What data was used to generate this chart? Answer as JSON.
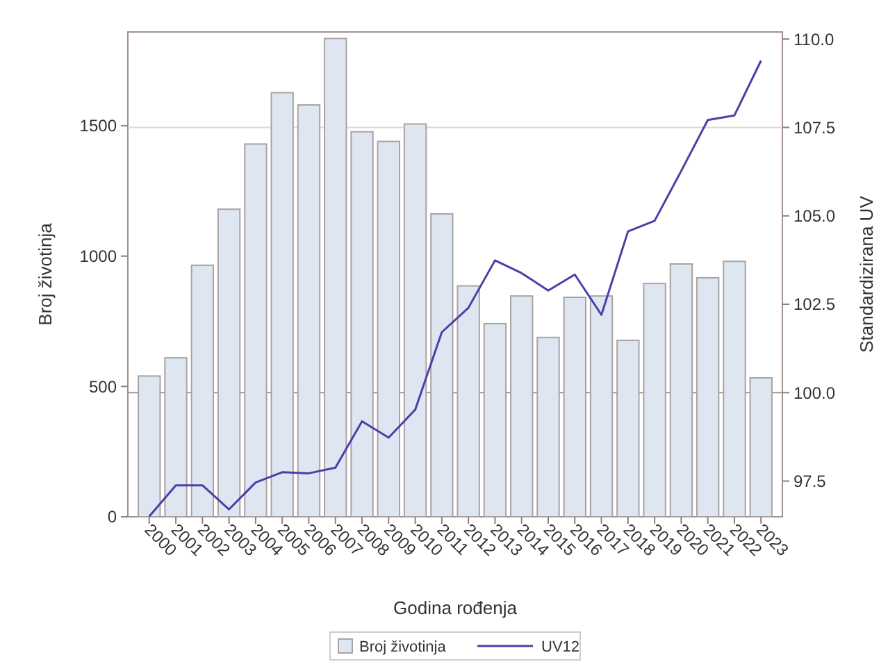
{
  "chart_data": {
    "type": "bar",
    "xlabel": "Godina rođenja",
    "ylabel": "Broj životinja",
    "y2label": "Standardizirana UV",
    "categories": [
      "2000",
      "2001",
      "2002",
      "2003",
      "2004",
      "2005",
      "2006",
      "2007",
      "2008",
      "2009",
      "2010",
      "2011",
      "2012",
      "2013",
      "2014",
      "2015",
      "2016",
      "2017",
      "2018",
      "2019",
      "2020",
      "2021",
      "2022",
      "2023"
    ],
    "series": [
      {
        "name": "Broj životinja",
        "color": "#dde6f1",
        "values": [
          540,
          610,
          965,
          1180,
          1430,
          1627,
          1580,
          1835,
          1477,
          1440,
          1507,
          1162,
          886,
          741,
          847,
          688,
          842,
          847,
          677,
          895,
          970,
          917,
          980,
          533
        ]
      },
      {
        "name": "UV12",
        "type": "line",
        "axis": "y2",
        "color": "#4b3fa8",
        "values": [
          96.5,
          97.38,
          97.38,
          96.7,
          97.46,
          97.75,
          97.72,
          97.88,
          99.19,
          98.73,
          99.52,
          101.71,
          102.4,
          103.74,
          103.38,
          102.89,
          103.34,
          102.2,
          104.56,
          104.86,
          106.27,
          107.71,
          107.84,
          109.39
        ]
      }
    ],
    "ylim": [
      0,
      1860
    ],
    "yticks": [
      0,
      500,
      1000,
      1500
    ],
    "y2lim": [
      96.49,
      110.2
    ],
    "y2ticks": [
      {
        "value": 97.5,
        "label": "97.5"
      },
      {
        "value": 100,
        "label": "100.0"
      },
      {
        "value": 102.5,
        "label": "102.5"
      },
      {
        "value": 105,
        "label": "105.0"
      },
      {
        "value": 107.5,
        "label": "107.5"
      },
      {
        "value": 110,
        "label": "110.0"
      }
    ],
    "ref_lines": [
      {
        "axis": "y2",
        "value": 100,
        "color": "#a89090"
      },
      {
        "axis": "y2",
        "value": 107.5,
        "color": "#e0d8d0"
      }
    ],
    "legend": "bottom",
    "marker": "none",
    "line_style": "solid"
  }
}
